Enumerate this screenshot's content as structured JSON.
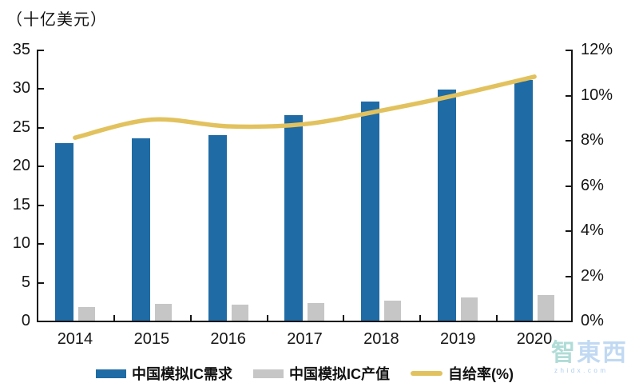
{
  "unit_label": "（十亿美元）",
  "chart_data": {
    "type": "bar",
    "title": "（十亿美元）",
    "categories": [
      "2014",
      "2015",
      "2016",
      "2017",
      "2018",
      "2019",
      "2020"
    ],
    "series": [
      {
        "name": "中国模拟IC需求",
        "type": "bar",
        "axis": "left",
        "values": [
          22.9,
          23.5,
          24.0,
          26.5,
          28.3,
          29.8,
          31.1
        ]
      },
      {
        "name": "中国模拟IC产值",
        "type": "bar",
        "axis": "left",
        "values": [
          1.8,
          2.2,
          2.1,
          2.3,
          2.6,
          3.0,
          3.3
        ]
      },
      {
        "name": "自给率(%)",
        "type": "line",
        "axis": "right",
        "values": [
          8.1,
          8.9,
          8.6,
          8.7,
          9.3,
          10.0,
          10.8
        ]
      }
    ],
    "left_axis": {
      "min": 0,
      "max": 35,
      "step": 5,
      "format": "number",
      "ticks": [
        "0",
        "5",
        "10",
        "15",
        "20",
        "25",
        "30",
        "35"
      ]
    },
    "right_axis": {
      "min": 0,
      "max": 12,
      "step": 2,
      "format": "percent",
      "ticks": [
        "0%",
        "2%",
        "4%",
        "6%",
        "8%",
        "10%",
        "12%"
      ]
    },
    "legend_position": "bottom",
    "grid": false
  },
  "colors": {
    "demand_bar": "#1F6BA5",
    "output_bar": "#C6C6C6",
    "line": "#E2C25E",
    "axis": "#151515",
    "text": "#151515"
  },
  "legend": {
    "items": [
      {
        "label": "中国模拟IC需求",
        "swatch": "bar",
        "color_key": "demand_bar"
      },
      {
        "label": "中国模拟IC产值",
        "swatch": "bar",
        "color_key": "output_bar"
      },
      {
        "label": "自给率(%)",
        "swatch": "line",
        "color_key": "line"
      }
    ]
  },
  "watermark": {
    "text": "智東西",
    "subtext": "zhidx.com"
  }
}
